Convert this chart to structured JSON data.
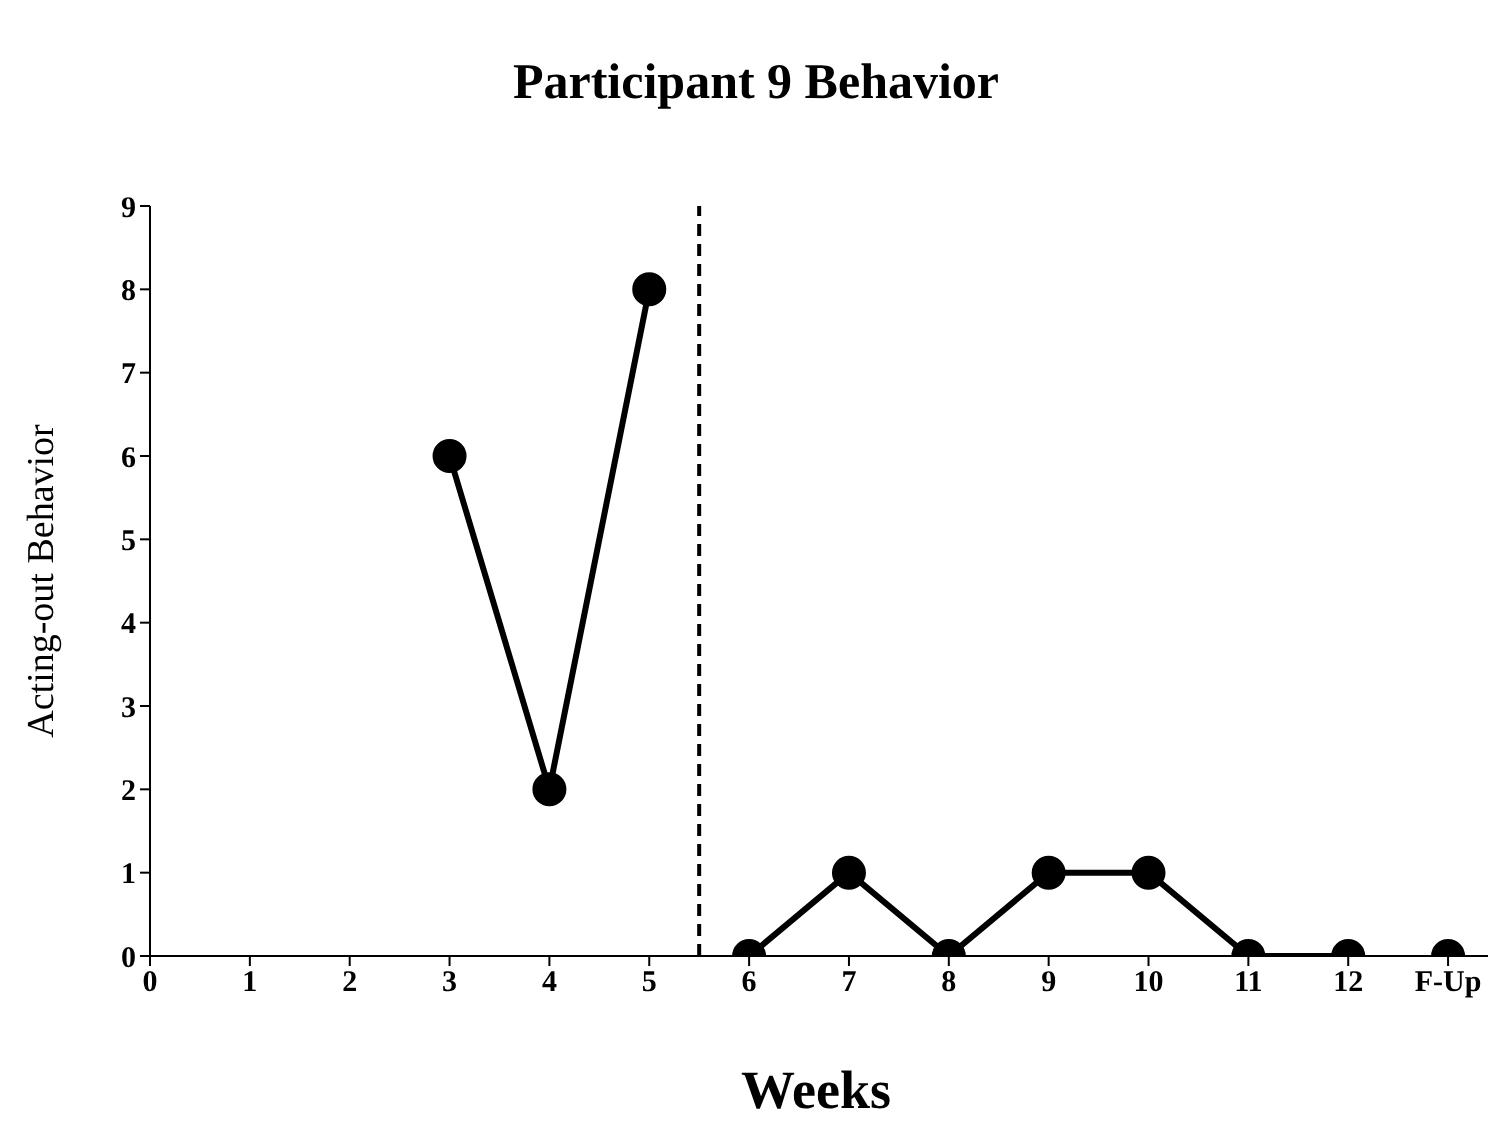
{
  "chart_data": {
    "type": "line",
    "title": "Participant 9 Behavior",
    "xlabel": "Weeks",
    "ylabel": "Acting-out Behavior",
    "xlim": [
      0,
      13.4
    ],
    "xticks": [
      0,
      1,
      2,
      3,
      4,
      5,
      6,
      7,
      8,
      9,
      10,
      11,
      12,
      {
        "value": 13,
        "label": "F-Up"
      }
    ],
    "ylim": [
      0,
      9
    ],
    "yticks": [
      0,
      1,
      2,
      3,
      4,
      5,
      6,
      7,
      8,
      9
    ],
    "series": [
      {
        "color": "#000000",
        "x": [
          3,
          4,
          5
        ],
        "values": [
          6,
          2,
          8
        ]
      },
      {
        "color": "#000000",
        "x": [
          6,
          7,
          8,
          9,
          10,
          11,
          12
        ],
        "values": [
          0,
          1,
          0,
          1,
          1,
          0,
          0
        ]
      },
      {
        "color": "#000000",
        "x": [
          13
        ],
        "values": [
          0
        ]
      }
    ],
    "ref_lines": [
      {
        "axis": "x",
        "value": 5.5,
        "color": "#000000",
        "line_style": "dashed"
      }
    ],
    "marker": "circle",
    "line_style": "solid"
  }
}
